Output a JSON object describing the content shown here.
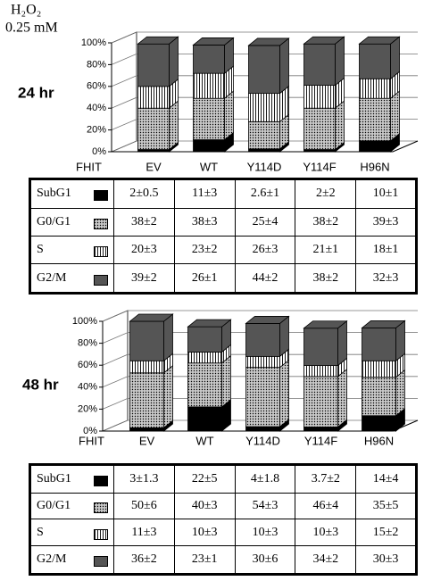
{
  "header": {
    "reagent": "H₂O₂",
    "dose": "0.25 mM"
  },
  "chart_data": [
    {
      "type": "bar",
      "stacked": true,
      "title": "24 hr",
      "x_label": "FHIT",
      "categories": [
        "EV",
        "WT",
        "Y114D",
        "Y114F",
        "H96N"
      ],
      "ylim": [
        0,
        100
      ],
      "yticks": [
        {
          "value": 0,
          "label": "0%"
        },
        {
          "value": 20,
          "label": "20%"
        },
        {
          "value": 40,
          "label": "40%"
        },
        {
          "value": 60,
          "label": "60%"
        },
        {
          "value": 80,
          "label": "80%"
        },
        {
          "value": 100,
          "label": "100%"
        }
      ],
      "series": [
        {
          "name": "SubG1",
          "color": "#000000",
          "pattern": "solid",
          "values": [
            2,
            11,
            2.6,
            2,
            10
          ],
          "value_labels": [
            "2±0.5",
            "11±3",
            "2.6±1",
            "2±2",
            "10±1"
          ]
        },
        {
          "name": "G0/G1",
          "color": "#c8c8c8",
          "pattern": "dots",
          "values": [
            38,
            38,
            25,
            38,
            39
          ],
          "value_labels": [
            "38±2",
            "38±3",
            "25±4",
            "38±2",
            "39±3"
          ]
        },
        {
          "name": "S",
          "color": "#ffffff",
          "pattern": "vstripes",
          "values": [
            20,
            23,
            26,
            21,
            18
          ],
          "value_labels": [
            "20±3",
            "23±2",
            "26±3",
            "21±1",
            "18±1"
          ]
        },
        {
          "name": "G2/M",
          "color": "#555555",
          "pattern": "solid",
          "values": [
            39,
            26,
            44,
            38,
            32
          ],
          "value_labels": [
            "39±2",
            "26±1",
            "44±2",
            "38±2",
            "32±3"
          ]
        }
      ]
    },
    {
      "type": "bar",
      "stacked": true,
      "title": "48 hr",
      "x_label": "FHIT",
      "categories": [
        "EV",
        "WT",
        "Y114D",
        "Y114F",
        "H96N"
      ],
      "ylim": [
        0,
        100
      ],
      "yticks": [
        {
          "value": 0,
          "label": "0%"
        },
        {
          "value": 20,
          "label": "20%"
        },
        {
          "value": 40,
          "label": "40%"
        },
        {
          "value": 60,
          "label": "60%"
        },
        {
          "value": 80,
          "label": "80%"
        },
        {
          "value": 100,
          "label": "100%"
        }
      ],
      "series": [
        {
          "name": "SubG1",
          "color": "#000000",
          "pattern": "solid",
          "values": [
            3,
            22,
            4,
            3.7,
            14
          ],
          "value_labels": [
            "3±1.3",
            "22±5",
            "4±1.8",
            "3.7±2",
            "14±4"
          ]
        },
        {
          "name": "G0/G1",
          "color": "#c8c8c8",
          "pattern": "dots",
          "values": [
            50,
            40,
            54,
            46,
            35
          ],
          "value_labels": [
            "50±6",
            "40±3",
            "54±3",
            "46±4",
            "35±5"
          ]
        },
        {
          "name": "S",
          "color": "#ffffff",
          "pattern": "vstripes",
          "values": [
            11,
            10,
            10,
            10,
            15
          ],
          "value_labels": [
            "11±3",
            "10±3",
            "10±3",
            "10±3",
            "15±2"
          ]
        },
        {
          "name": "G2/M",
          "color": "#555555",
          "pattern": "solid",
          "values": [
            36,
            23,
            30,
            34,
            30
          ],
          "value_labels": [
            "36±2",
            "23±1",
            "30±6",
            "34±2",
            "30±3"
          ]
        }
      ]
    }
  ]
}
